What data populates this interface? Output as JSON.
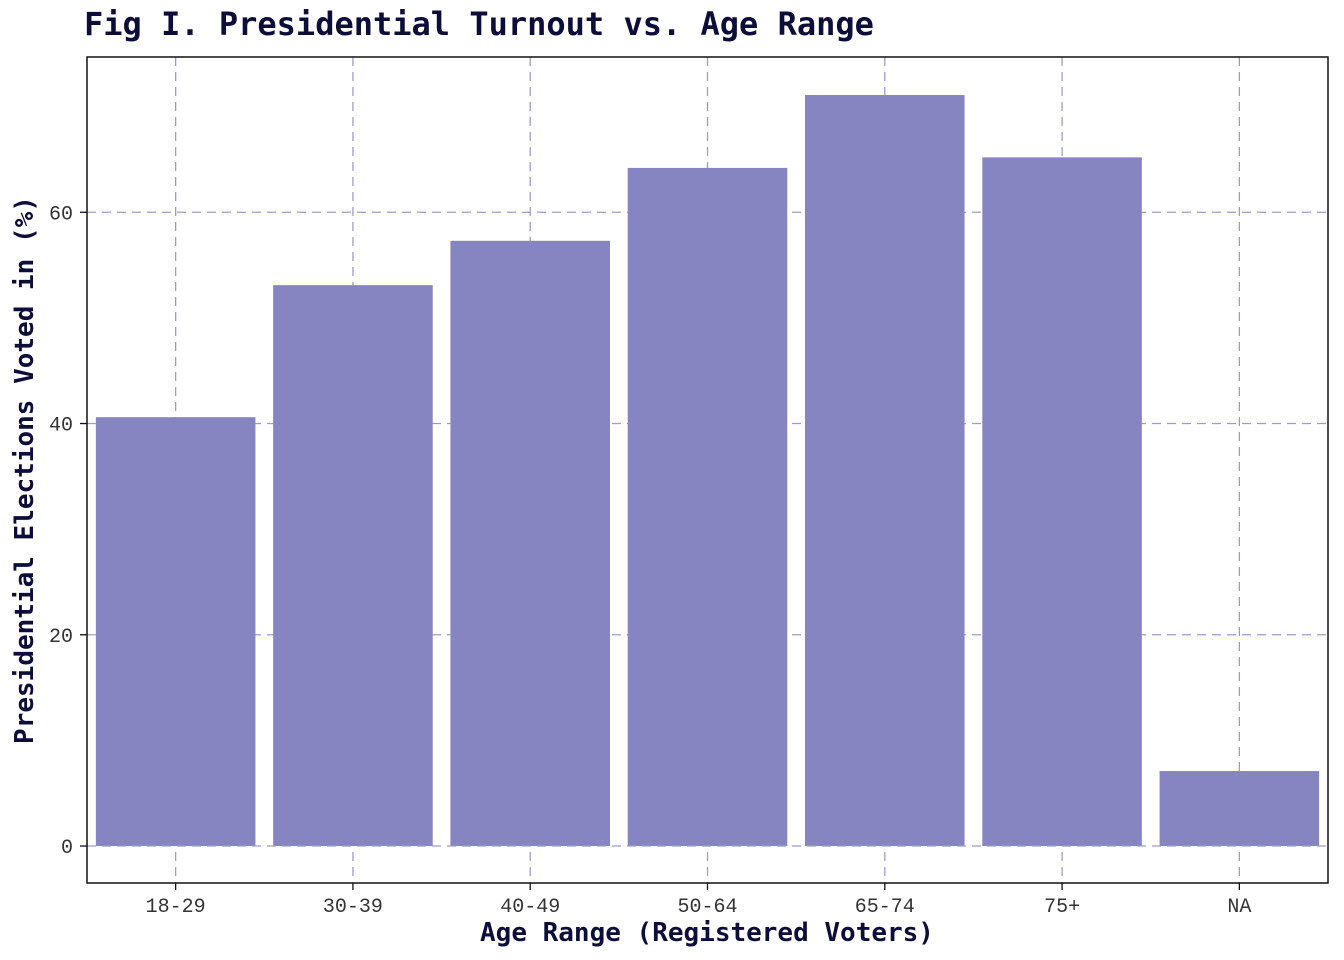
{
  "chart_data": {
    "type": "bar",
    "title": "Fig I. Presidential Turnout vs. Age Range",
    "xlabel": "Age Range (Registered Voters)",
    "ylabel": "Presidential Elections Voted in (%)",
    "categories": [
      "18-29",
      "30-39",
      "40-49",
      "50-64",
      "65-74",
      "75+",
      "NA"
    ],
    "values": [
      40.6,
      53.1,
      57.3,
      64.2,
      71.1,
      65.2,
      7.1
    ],
    "ylim": [
      -3.5,
      74.7
    ],
    "yticks": [
      0,
      20,
      40,
      60
    ],
    "grid": true,
    "legend": "none",
    "colors": {
      "bar": "#8685c1",
      "grid": "#9d9cc6",
      "text": "#0d0d3a",
      "tick": "#333333",
      "frame": "#111111"
    }
  }
}
